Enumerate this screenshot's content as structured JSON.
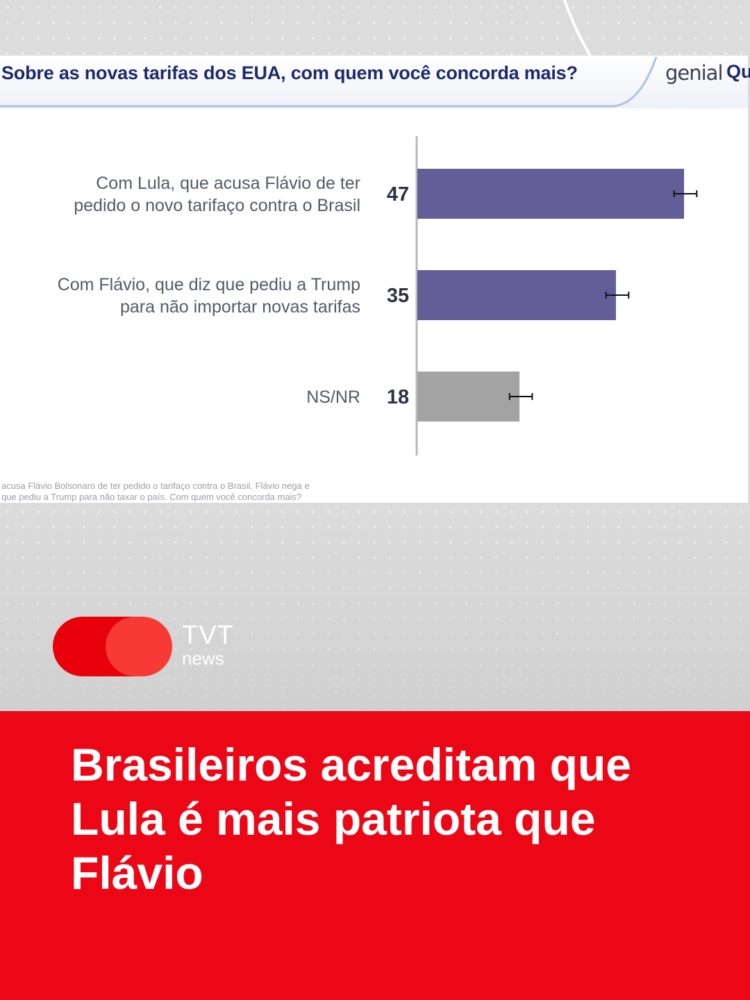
{
  "panel": {
    "title": "Sobre as novas tarifas dos EUA, com quem você concorda mais?",
    "brand_primary": "genial",
    "brand_secondary": "Qu",
    "footnote_line1": "acusa Flávio Bolsonaro de ter pedido o tarifaço contra o Brasil. Flávio nega e",
    "footnote_line2": "que pediu a Trump para não taxar o país. Com quem você concorda mais?"
  },
  "chart_data": {
    "type": "bar",
    "orientation": "horizontal",
    "title": "Sobre as novas tarifas dos EUA, com quem você concorda mais?",
    "categories": [
      [
        "Com Lula, que acusa Flávio de ter",
        "pedido o novo tarifaço contra o Brasil"
      ],
      [
        "Com Flávio, que diz que pediu a Trump",
        "para não importar novas tarifas"
      ],
      [
        "NS/NR"
      ]
    ],
    "values": [
      47,
      35,
      18
    ],
    "error_margin": [
      2,
      2,
      2
    ],
    "bar_colors": [
      "#635e97",
      "#635e97",
      "#a3a3a3"
    ],
    "xlim": [
      0,
      50
    ],
    "grid": false,
    "legend": "none"
  },
  "branding": {
    "name": "TVT",
    "sub": "news"
  },
  "headline": "Brasileiros acreditam que Lula é mais patriota que Flávio",
  "colors": {
    "banner": "#ec0716",
    "title": "#1d2a6b",
    "bar_main": "#635e97",
    "bar_other": "#a3a3a3"
  }
}
